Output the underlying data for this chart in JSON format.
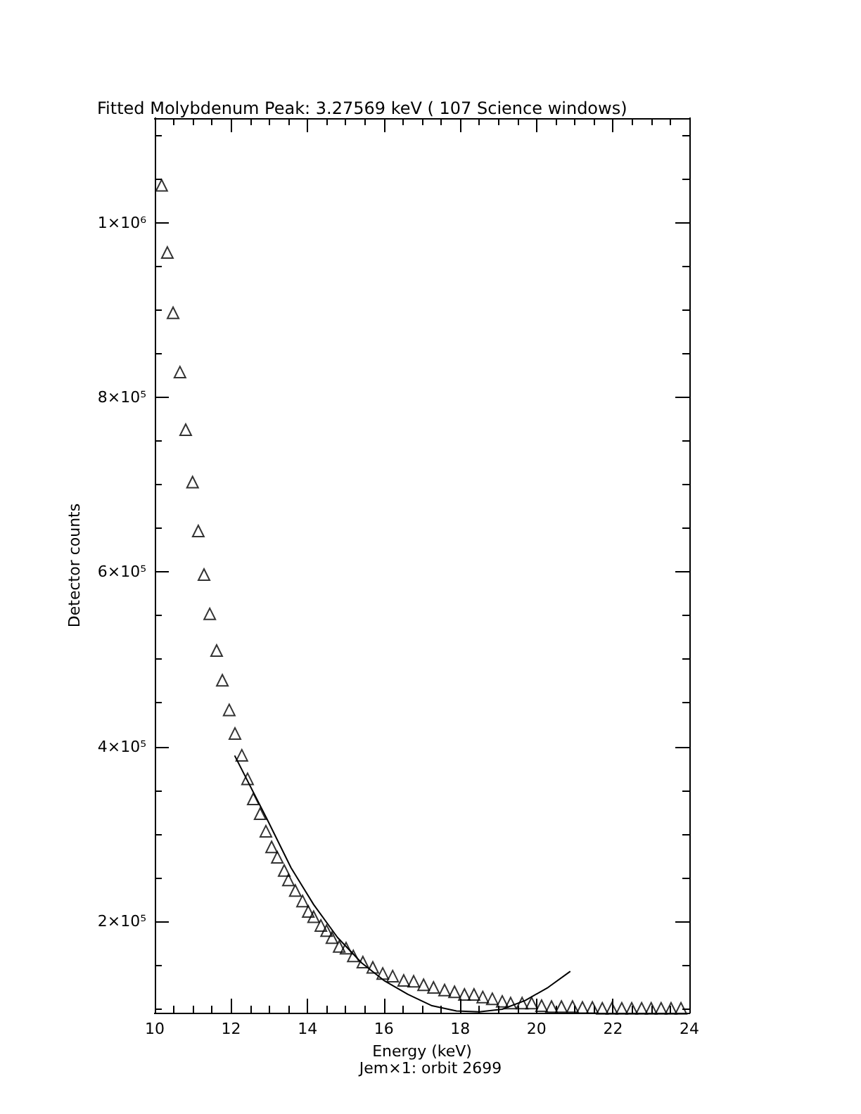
{
  "chart_data": {
    "type": "scatter",
    "title": "Fitted Molybdenum Peak: 3.27569 keV ( 107 Science windows)",
    "xlabel": "Energy (keV)",
    "ylabel": "Detector counts",
    "annotations": [
      "Jem×1: orbit 2699"
    ],
    "xlim": [
      10,
      24
    ],
    "xticks": [
      10,
      {
        "value": 10.5,
        "label": null
      },
      {
        "value": 11,
        "label": null
      },
      {
        "value": 11.5,
        "label": null
      },
      12,
      {
        "value": 12.5,
        "label": null
      },
      {
        "value": 13,
        "label": null
      },
      {
        "value": 13.5,
        "label": null
      },
      14,
      {
        "value": 14.5,
        "label": null
      },
      {
        "value": 15,
        "label": null
      },
      {
        "value": 15.5,
        "label": null
      },
      16,
      {
        "value": 16.5,
        "label": null
      },
      {
        "value": 17,
        "label": null
      },
      {
        "value": 17.5,
        "label": null
      },
      18,
      {
        "value": 18.5,
        "label": null
      },
      {
        "value": 19,
        "label": null
      },
      {
        "value": 19.5,
        "label": null
      },
      20,
      {
        "value": 20.5,
        "label": null
      },
      {
        "value": 21,
        "label": null
      },
      {
        "value": 21.5,
        "label": null
      },
      22,
      {
        "value": 22.5,
        "label": null
      },
      {
        "value": 23,
        "label": null
      },
      {
        "value": 23.5,
        "label": null
      },
      24
    ],
    "ylim": [
      95000,
      1120000
    ],
    "yticks": [
      {
        "value": 100000,
        "label": null
      },
      {
        "value": 150000,
        "label": null
      },
      {
        "value": 200000,
        "label": "2×10⁵"
      },
      {
        "value": 250000,
        "label": null
      },
      {
        "value": 300000,
        "label": null
      },
      {
        "value": 350000,
        "label": null
      },
      {
        "value": 400000,
        "label": "4×10⁵"
      },
      {
        "value": 450000,
        "label": null
      },
      {
        "value": 500000,
        "label": null
      },
      {
        "value": 550000,
        "label": null
      },
      {
        "value": 600000,
        "label": "6×10⁵"
      },
      {
        "value": 650000,
        "label": null
      },
      {
        "value": 700000,
        "label": null
      },
      {
        "value": 750000,
        "label": null
      },
      {
        "value": 800000,
        "label": "8×10⁵"
      },
      {
        "value": 850000,
        "label": null
      },
      {
        "value": 900000,
        "label": null
      },
      {
        "value": 950000,
        "label": null
      },
      {
        "value": 1000000,
        "label": "1×10⁶"
      },
      {
        "value": 1050000,
        "label": null
      },
      {
        "value": 1100000,
        "label": null
      }
    ],
    "grid": false,
    "series": [
      {
        "marker": "triangle",
        "color": "#000000",
        "x": [
          10.18,
          10.33,
          10.48,
          10.66,
          10.81,
          10.99,
          11.14,
          11.29,
          11.44,
          11.62,
          11.77,
          11.95,
          12.1,
          12.28,
          12.43,
          12.58,
          12.76,
          12.91,
          13.06,
          13.21,
          13.39,
          13.5,
          13.68,
          13.87,
          14.02,
          14.16,
          14.35,
          14.5,
          14.64,
          14.83,
          15.01,
          15.2,
          15.45,
          15.71,
          15.97,
          16.23,
          16.52,
          16.78,
          17.04,
          17.3,
          17.59,
          17.85,
          18.11,
          18.36,
          18.59,
          18.84,
          19.1,
          19.32,
          19.62,
          19.87,
          20.13,
          20.39,
          20.65,
          20.94,
          21.2,
          21.46,
          21.72,
          21.97,
          22.23,
          22.49,
          22.75,
          23.0,
          23.26,
          23.52,
          23.78
        ],
        "values": [
          1043000,
          966000,
          897000,
          829000,
          763000,
          703000,
          647000,
          597000,
          552000,
          510000,
          476000,
          442000,
          415000,
          390000,
          363000,
          340000,
          323000,
          303000,
          285000,
          273000,
          258000,
          247000,
          235000,
          223000,
          211000,
          205000,
          195000,
          189000,
          181000,
          171000,
          169000,
          160000,
          153000,
          147000,
          140000,
          137000,
          132000,
          131000,
          127000,
          124000,
          121000,
          119000,
          116000,
          116000,
          113000,
          111000,
          108000,
          106000,
          106000,
          106000,
          103000,
          102000,
          102000,
          102000,
          101000,
          101000,
          100000,
          100000,
          100000,
          100000,
          100000,
          100000,
          100000,
          100000,
          100000
        ]
      },
      {
        "type": "line",
        "marker": "none",
        "line_style": "solid",
        "color": "#000000",
        "x": [
          12.1,
          12.95,
          13.57,
          14.16,
          14.79,
          15.42,
          16.0,
          16.63,
          17.26,
          17.9,
          18.5,
          19.1,
          19.7,
          20.3,
          20.87
        ],
        "values": [
          389000,
          316000,
          261000,
          219000,
          181000,
          152000,
          132000,
          116000,
          103000,
          97000,
          96000,
          99000,
          109000,
          124000,
          142000
        ]
      }
    ]
  }
}
